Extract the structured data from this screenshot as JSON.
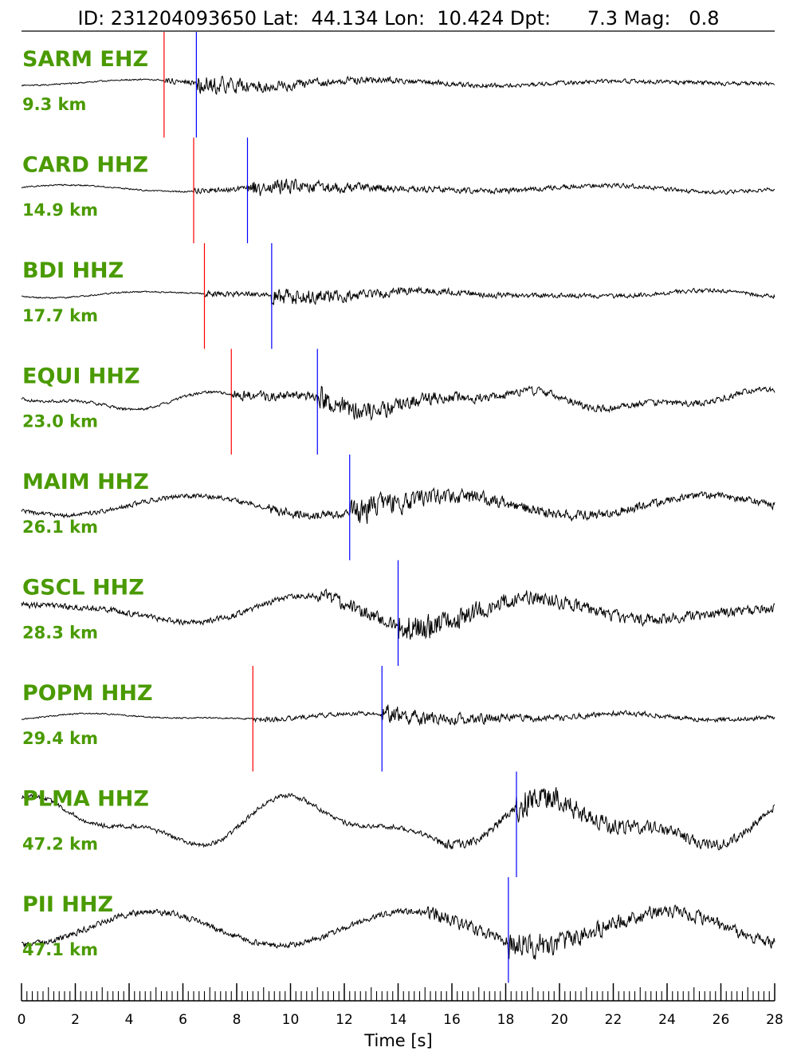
{
  "header": {
    "text": "ID: 231204093650 Lat:  44.134 Lon:  10.424 Dpt:      7.3 Mag:   0.8"
  },
  "colors": {
    "label": "#4a9a00",
    "p_pick": "#ff0000",
    "s_pick": "#0000ff",
    "trace": "#000000"
  },
  "chart_data": {
    "type": "line",
    "title": "ID: 231204093650 Lat:  44.134 Lon:  10.424 Dpt:      7.3 Mag:   0.8",
    "xlabel": "Time [s]",
    "ylabel": "",
    "xlim": [
      0,
      28
    ],
    "xticks": [
      0,
      2,
      4,
      6,
      8,
      10,
      12,
      14,
      16,
      18,
      20,
      22,
      24,
      26,
      28
    ],
    "minor_tick_step": 0.2,
    "grid": false,
    "event": {
      "id": "231204093650",
      "lat": 44.134,
      "lon": 10.424,
      "depth": 7.3,
      "magnitude": 0.8
    },
    "stations": [
      {
        "name": "SARM EHZ",
        "distance": "9.3 km",
        "p_pick": 5.3,
        "s_pick": 6.5,
        "style": "strong",
        "seed": 11
      },
      {
        "name": "CARD HHZ",
        "distance": "14.9 km",
        "p_pick": 6.4,
        "s_pick": 8.4,
        "style": "strong",
        "seed": 23
      },
      {
        "name": "BDI HHZ",
        "distance": "17.7 km",
        "p_pick": 6.8,
        "s_pick": 9.3,
        "style": "strong",
        "seed": 37
      },
      {
        "name": "EQUI HHZ",
        "distance": "23.0 km",
        "p_pick": 7.8,
        "s_pick": 11.0,
        "style": "wavy",
        "seed": 41
      },
      {
        "name": "MAIM HHZ",
        "distance": "26.1 km",
        "p_pick": null,
        "s_pick": 12.2,
        "style": "longwave",
        "seed": 53
      },
      {
        "name": "GSCL HHZ",
        "distance": "28.3 km",
        "p_pick": null,
        "s_pick": 14.0,
        "style": "noisy",
        "seed": 67
      },
      {
        "name": "POPM HHZ",
        "distance": "29.4 km",
        "p_pick": 8.6,
        "s_pick": 13.4,
        "style": "strong",
        "seed": 71
      },
      {
        "name": "PLMA HHZ",
        "distance": "47.2 km",
        "p_pick": null,
        "s_pick": 18.4,
        "style": "longwave",
        "seed": 83
      },
      {
        "name": "PII HHZ",
        "distance": "47.1 km",
        "p_pick": null,
        "s_pick": 18.1,
        "style": "noisy",
        "seed": 97
      }
    ]
  }
}
